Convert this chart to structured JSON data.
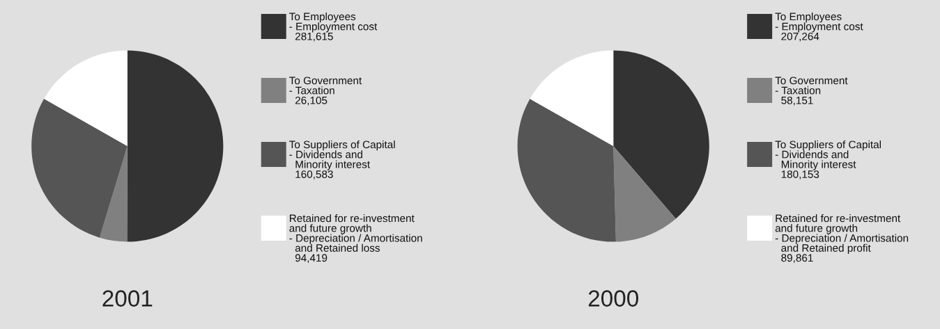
{
  "chart_data": [
    {
      "type": "pie",
      "title": "2001",
      "categories": [
        "To Employees\n- Employment cost",
        "To Government\n- Taxation",
        "To Suppliers of Capital\n- Dividends and\n  Minority interest",
        "Retained for re-investment\nand future growth\n- Depreciation / Amortisation\n  and Retained loss"
      ],
      "values": [
        281615,
        26105,
        160583,
        94419
      ],
      "value_labels": [
        "281,615",
        "26,105",
        "160,583",
        "94,419"
      ],
      "colors": [
        "#333333",
        "#808080",
        "#555555",
        "#ffffff"
      ],
      "legend": "right"
    },
    {
      "type": "pie",
      "title": "2000",
      "categories": [
        "To Employees\n- Employment cost",
        "To Government\n- Taxation",
        "To Suppliers of Capital\n- Dividends and\n  Minority interest",
        "Retained for re-investment\nand future growth\n- Depreciation / Amortisation\n  and Retained profit"
      ],
      "values": [
        207264,
        58151,
        180153,
        89861
      ],
      "value_labels": [
        "207,264",
        "58,151",
        "180,153",
        "89,861"
      ],
      "colors": [
        "#333333",
        "#808080",
        "#555555",
        "#ffffff"
      ],
      "legend": "right"
    }
  ]
}
